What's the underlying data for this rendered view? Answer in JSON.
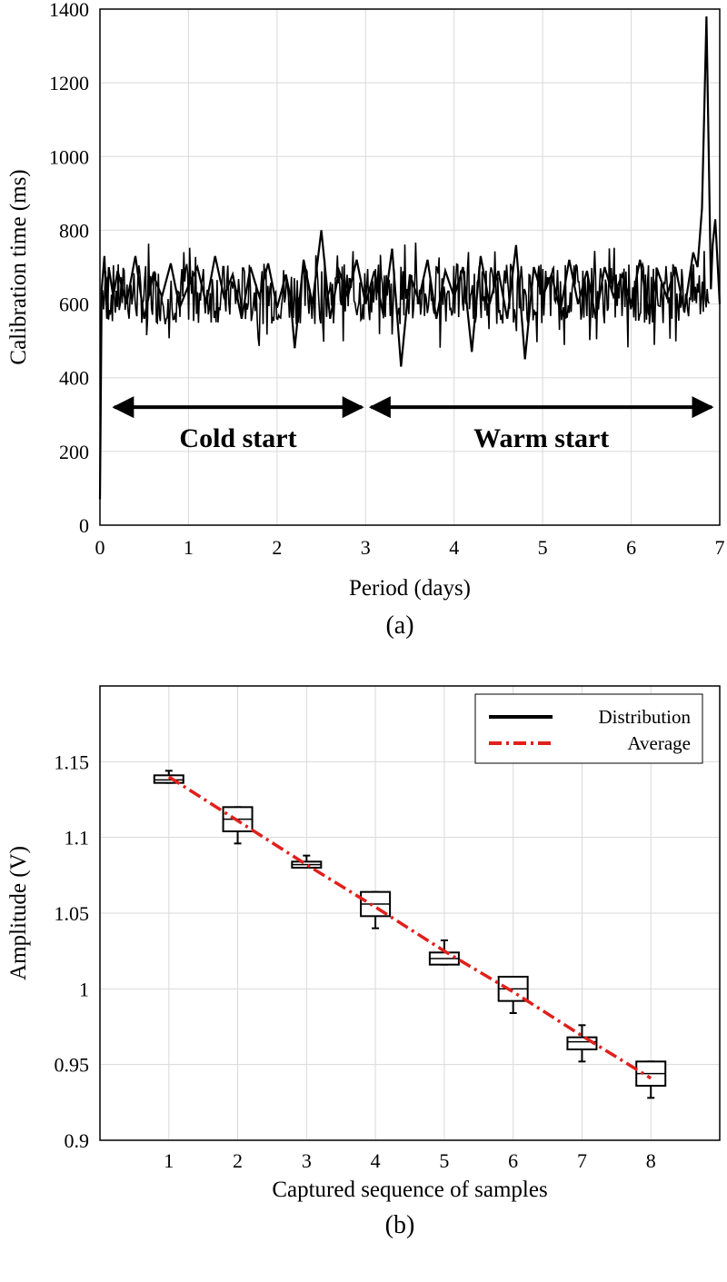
{
  "chart_data": [
    {
      "type": "line",
      "panel_label": "(a)",
      "xlabel": "Period (days)",
      "ylabel": "Calibration time (ms)",
      "xlim": [
        0,
        7
      ],
      "ylim": [
        0,
        1400
      ],
      "xticks": [
        0,
        1,
        2,
        3,
        4,
        5,
        6,
        7
      ],
      "yticks": [
        0,
        200,
        400,
        600,
        800,
        1000,
        1200,
        1400
      ],
      "grid": true,
      "series": [
        {
          "x": [
            0,
            0.02,
            0.05,
            0.08,
            0.1,
            0.15,
            0.2,
            0.3,
            0.4,
            0.5,
            0.6,
            0.7,
            0.8,
            0.9,
            1.0,
            1.1,
            1.2,
            1.3,
            1.4,
            1.5,
            1.6,
            1.7,
            1.8,
            1.9,
            2.0,
            2.1,
            2.15,
            2.2,
            2.3,
            2.4,
            2.5,
            2.6,
            2.7,
            2.8,
            2.9,
            3.0,
            3.1,
            3.2,
            3.3,
            3.4,
            3.5,
            3.6,
            3.7,
            3.8,
            3.9,
            4.0,
            4.1,
            4.2,
            4.3,
            4.4,
            4.5,
            4.6,
            4.7,
            4.8,
            4.9,
            5.0,
            5.1,
            5.2,
            5.3,
            5.4,
            5.5,
            5.6,
            5.7,
            5.8,
            5.9,
            6.0,
            6.1,
            6.2,
            6.3,
            6.4,
            6.5,
            6.6,
            6.7,
            6.75,
            6.8,
            6.85,
            6.88,
            6.9,
            6.92,
            6.95,
            7.0
          ],
          "y": [
            70,
            640,
            730,
            560,
            700,
            620,
            690,
            600,
            730,
            560,
            680,
            620,
            710,
            590,
            650,
            700,
            600,
            730,
            620,
            680,
            560,
            700,
            620,
            710,
            590,
            680,
            620,
            480,
            720,
            600,
            800,
            560,
            690,
            620,
            720,
            600,
            690,
            570,
            750,
            430,
            680,
            610,
            720,
            560,
            690,
            620,
            700,
            470,
            730,
            600,
            690,
            560,
            760,
            450,
            700,
            620,
            680,
            580,
            720,
            600,
            690,
            560,
            700,
            620,
            680,
            600,
            720,
            570,
            690,
            620,
            700,
            580,
            740,
            700,
            860,
            1380,
            950,
            640,
            760,
            830,
            600
          ]
        }
      ],
      "annotations": [
        {
          "text": "Cold start",
          "x_start": 0.1,
          "x_end": 3.0,
          "y": 320
        },
        {
          "text": "Warm start",
          "x_start": 3.0,
          "x_end": 6.95,
          "y": 320
        }
      ]
    },
    {
      "type": "box",
      "panel_label": "(b)",
      "xlabel": "Captured sequence of samples",
      "ylabel": "Amplitude (V)",
      "xlim": [
        0,
        9
      ],
      "ylim": [
        0.9,
        1.2
      ],
      "xticks": [
        1,
        2,
        3,
        4,
        5,
        6,
        7,
        8
      ],
      "yticks": [
        0.9,
        0.95,
        1,
        1.05,
        1.1,
        1.15
      ],
      "ytick_labels": [
        "0.9",
        "0.95",
        "1",
        "1.05",
        "1.1",
        "1.15"
      ],
      "grid": true,
      "legend": {
        "placement": "top-right",
        "entries": [
          {
            "label": "Distribution",
            "color": "#000000",
            "style": "solid"
          },
          {
            "label": "Average",
            "color": "#e0201b",
            "style": "dash-dot"
          }
        ]
      },
      "boxes": [
        {
          "x": 1,
          "min": 1.136,
          "q1": 1.136,
          "median": 1.138,
          "q3": 1.141,
          "max": 1.144
        },
        {
          "x": 2,
          "min": 1.096,
          "q1": 1.104,
          "median": 1.112,
          "q3": 1.12,
          "max": 1.12
        },
        {
          "x": 3,
          "min": 1.08,
          "q1": 1.08,
          "median": 1.082,
          "q3": 1.084,
          "max": 1.088
        },
        {
          "x": 4,
          "min": 1.04,
          "q1": 1.048,
          "median": 1.056,
          "q3": 1.064,
          "max": 1.064
        },
        {
          "x": 5,
          "min": 1.016,
          "q1": 1.016,
          "median": 1.02,
          "q3": 1.024,
          "max": 1.032
        },
        {
          "x": 6,
          "min": 0.984,
          "q1": 0.992,
          "median": 1.0,
          "q3": 1.008,
          "max": 1.008
        },
        {
          "x": 7,
          "min": 0.952,
          "q1": 0.96,
          "median": 0.965,
          "q3": 0.968,
          "max": 0.976
        },
        {
          "x": 8,
          "min": 0.928,
          "q1": 0.936,
          "median": 0.944,
          "q3": 0.952,
          "max": 0.952
        }
      ],
      "average": {
        "x": [
          1,
          2,
          3,
          4,
          5,
          6,
          7,
          8
        ],
        "y": [
          1.14,
          1.111,
          1.082,
          1.054,
          1.025,
          0.998,
          0.969,
          0.941
        ],
        "color": "#e0201b"
      }
    }
  ]
}
